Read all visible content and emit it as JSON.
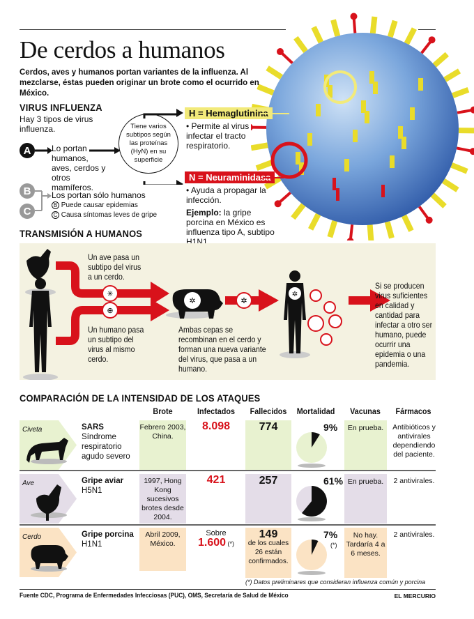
{
  "title": "De cerdos a humanos",
  "subtitle": "Cerdos, aves y humanos portan variantes de la influenza. Al mezclarse, éstas pueden originar un brote como el ocurrido en México.",
  "colors": {
    "red": "#d8121b",
    "yellow": "#f2ea7a",
    "virus_blue": "#6f9fd8",
    "panel": "#f4f2e1",
    "sars": "#e8f2d0",
    "ave": "#e4dde8",
    "cerdo": "#fbe3c4"
  },
  "virus": {
    "heading": "VIRUS INFLUENZA",
    "intro": "Hay 3 tipos de virus influenza.",
    "type_a": {
      "letter": "A",
      "text": "Lo portan humanos, aves, cerdos y otros mamíferos."
    },
    "type_bc": {
      "letters": [
        "B",
        "C"
      ],
      "text": "Los portan sólo humanos",
      "b_note": "Puede causar epidemias",
      "c_note": "Causa síntomas leves de gripe",
      "b_mark": "B",
      "c_mark": "C"
    },
    "circle_text": "Tiene varios subtipos según las proteínas (HyN) en su superficie",
    "h_label": "H = Hemaglutinina",
    "h_desc": "• Permite al virus infectar el tracto respiratorio.",
    "n_label": "N = Neuraminidasa",
    "n_desc": "• Ayuda a propagar la infección.",
    "example_bold": "Ejemplo:",
    "example_text": " la gripe porcina en México es influenza tipo A, subtipo H1N1."
  },
  "transmission": {
    "heading": "TRANSMISIÓN A HUMANOS",
    "bird_text": "Un ave pasa un subtipo del virus a un cerdo.",
    "human_text": "Un humano pasa un subtipo del virus al mismo cerdo.",
    "pig_text": "Ambas cepas se recombinan en el cerdo y forman una nueva variante del virus, que pasa a un humano.",
    "result_text": "Si se producen virus suficientes en calidad y cantidad para infectar a otro ser humano, puede ocurrir una epidemia o una pandemia."
  },
  "comparison": {
    "heading": "COMPARACIÓN DE LA INTENSIDAD DE LOS ATAQUES",
    "columns": [
      "Brote",
      "Infectados",
      "Fallecidos",
      "Mortalidad",
      "Vacunas",
      "Fármacos"
    ],
    "rows": [
      {
        "animal": "Civeta",
        "name": "SARS",
        "desc": "Síndrome respiratorio agudo severo",
        "brote": "Febrero 2003, China.",
        "infect_pre": "",
        "infectados": "8.098",
        "infect_note": "",
        "fallecidos": "774",
        "fall_note": "",
        "mortalidad": 9,
        "mort_label": "9%",
        "mort_note": "",
        "vacunas": "En prueba.",
        "farmacos": "Antibióticos y antivirales dependiendo del paciente."
      },
      {
        "animal": "Ave",
        "name": "Gripe aviar",
        "desc": "H5N1",
        "brote": "1997, Hong Kong sucesivos brotes desde 2004.",
        "infect_pre": "",
        "infectados": "421",
        "infect_note": "",
        "fallecidos": "257",
        "fall_note": "",
        "mortalidad": 61,
        "mort_label": "61%",
        "mort_note": "",
        "vacunas": "En prueba.",
        "farmacos": "2 antivirales."
      },
      {
        "animal": "Cerdo",
        "name": "Gripe porcina",
        "desc": "H1N1",
        "brote": "Abril 2009, México.",
        "infect_pre": "Sobre",
        "infectados": "1.600",
        "infect_note": " (*)",
        "fallecidos": "149",
        "fall_note": "de los cuales 26 están confirmados.",
        "mortalidad": 7,
        "mort_label": "7%",
        "mort_note": "(*)",
        "vacunas": "No hay. Tardaría 4 a 6 meses.",
        "farmacos": "2 antivirales."
      }
    ],
    "footnote": "(*) Datos preliminares que consideran influenza común y porcina"
  },
  "footer": {
    "source": "Fuente CDC, Programa de Enfermedades Infecciosas (PUC), OMS, Secretaría de Salud de México",
    "brand": "EL MERCURIO"
  }
}
